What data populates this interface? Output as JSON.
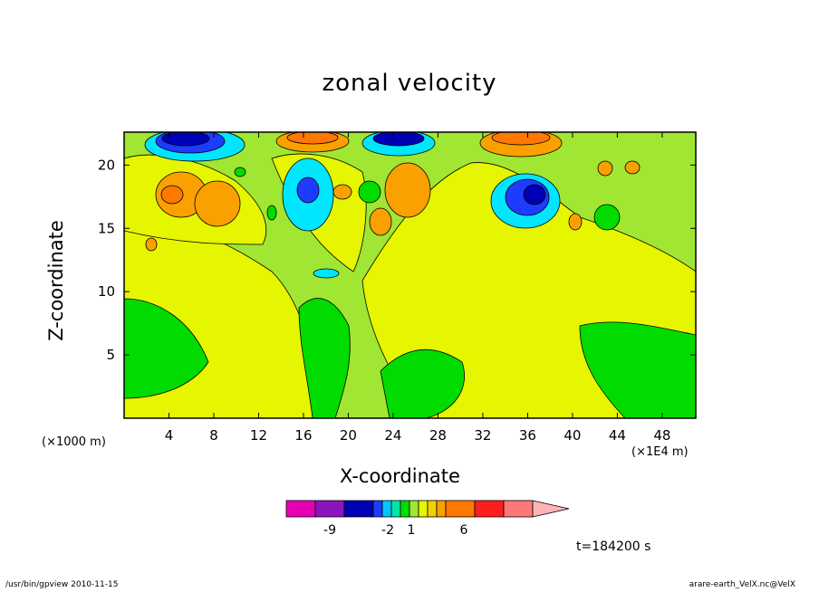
{
  "chart_data": {
    "type": "heatmap",
    "title": "zonal velocity",
    "xlabel": "X-coordinate",
    "ylabel": "Z-coordinate",
    "x_units": "(×1E4 m)",
    "y_units": "(×1000 m)",
    "xlim": [
      0,
      51
    ],
    "ylim": [
      0,
      22.6
    ],
    "x_ticks": [
      4,
      8,
      12,
      16,
      20,
      24,
      28,
      32,
      36,
      40,
      44,
      48
    ],
    "y_ticks": [
      5,
      10,
      15,
      20
    ],
    "time_label": "t=184200 s",
    "colorbar": {
      "labeled_levels": [
        "-9",
        "-2",
        "1",
        "6"
      ],
      "colors": [
        "#e600b4",
        "#8c14be",
        "#0000b4",
        "#1e3cff",
        "#00c8ff",
        "#00e6aa",
        "#00dc00",
        "#a0e632",
        "#e6f500",
        "#f0d200",
        "#faa000",
        "#ff7800",
        "#ff1e1e",
        "#ff7878",
        "#ffb4b4"
      ]
    },
    "regions": [
      {
        "level": 0,
        "note": "background"
      },
      {
        "cx": 16.5,
        "cy": 22.3,
        "rx": 3.2,
        "ry": 1.3,
        "value": -9
      },
      {
        "cx": 32.5,
        "cy": 22.3,
        "rx": 3.0,
        "ry": 1.2,
        "value": -9
      },
      {
        "cx": 14.5,
        "cy": 17.5,
        "rx": 1.0,
        "ry": 1.3,
        "value": -5
      },
      {
        "cx": 37.3,
        "cy": 17.5,
        "rx": 1.3,
        "ry": 1.5,
        "value": -5
      },
      {
        "cx": 28.0,
        "cy": 22.3,
        "rx": 2.8,
        "ry": 1.2,
        "value": 6
      },
      {
        "cx": 46.5,
        "cy": 22.3,
        "rx": 3.0,
        "ry": 1.2,
        "value": 6
      },
      {
        "cx": 6.0,
        "cy": 17.8,
        "rx": 1.2,
        "ry": 1.2,
        "value": 6
      },
      {
        "cx": 24.8,
        "cy": 18.0,
        "rx": 1.6,
        "ry": 2.2,
        "value": 3
      }
    ]
  },
  "footer": {
    "left": "/usr/bin/gpview  2010-11-15",
    "right": "arare-earth_VelX.nc@VelX"
  }
}
